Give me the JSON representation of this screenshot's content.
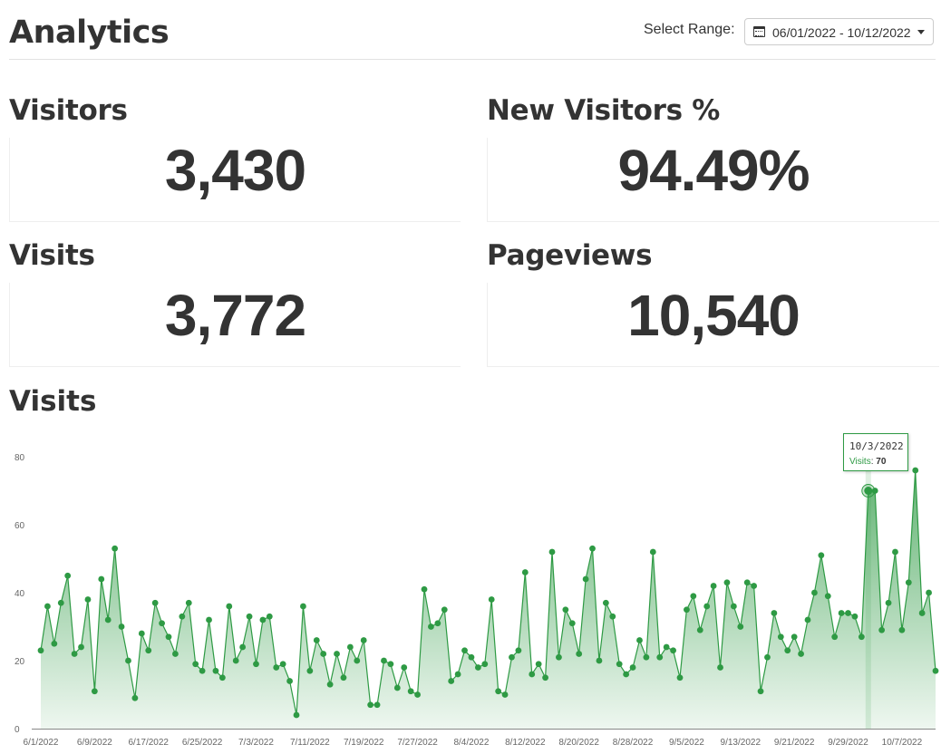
{
  "header": {
    "title": "Analytics",
    "range_label": "Select Range:",
    "range_value": "06/01/2022 - 10/12/2022"
  },
  "stats": {
    "visitors": {
      "label": "Visitors",
      "value": "3,430"
    },
    "new_visitors": {
      "label": "New Visitors %",
      "value": "94.49%"
    },
    "visits": {
      "label": "Visits",
      "value": "3,772"
    },
    "pageviews": {
      "label": "Pageviews",
      "value": "10,540"
    }
  },
  "chart_section": {
    "title": "Visits"
  },
  "tooltip": {
    "date": "10/3/2022",
    "label": "Visits",
    "value": "70"
  },
  "colors": {
    "series": "#2e9a44",
    "fill": "#56b26a",
    "text": "#333333"
  },
  "icons": {
    "calendar": "calendar-icon",
    "caret": "caret-down-icon"
  },
  "chart_data": {
    "type": "area",
    "x_start": "6/1/2022",
    "x_tick_labels": [
      "6/1/2022",
      "6/9/2022",
      "6/17/2022",
      "6/25/2022",
      "7/3/2022",
      "7/11/2022",
      "7/19/2022",
      "7/27/2022",
      "8/4/2022",
      "8/12/2022",
      "8/20/2022",
      "8/28/2022",
      "9/5/2022",
      "9/13/2022",
      "9/21/2022",
      "9/29/2022",
      "10/7/2022"
    ],
    "y_ticks": [
      0,
      20,
      40,
      60,
      80
    ],
    "ylim": [
      0,
      80
    ],
    "series": [
      {
        "name": "Visits",
        "values": [
          23,
          36,
          25,
          37,
          45,
          22,
          24,
          38,
          11,
          44,
          32,
          53,
          30,
          20,
          9,
          28,
          23,
          37,
          31,
          27,
          22,
          33,
          37,
          19,
          17,
          32,
          17,
          15,
          36,
          20,
          24,
          33,
          19,
          32,
          33,
          18,
          19,
          14,
          4,
          36,
          17,
          26,
          22,
          13,
          22,
          15,
          24,
          20,
          26,
          7,
          7,
          20,
          19,
          12,
          18,
          11,
          10,
          41,
          30,
          31,
          35,
          14,
          16,
          23,
          21,
          18,
          19,
          38,
          11,
          10,
          21,
          23,
          46,
          16,
          19,
          15,
          52,
          21,
          35,
          31,
          22,
          44,
          53,
          20,
          37,
          33,
          19,
          16,
          18,
          26,
          21,
          52,
          21,
          24,
          23,
          15,
          35,
          39,
          29,
          36,
          42,
          18,
          43,
          36,
          30,
          43,
          42,
          11,
          21,
          34,
          27,
          23,
          27,
          22,
          32,
          40,
          51,
          39,
          27,
          34,
          34,
          33,
          27,
          70,
          70,
          29,
          37,
          52,
          29,
          43,
          76,
          34,
          40,
          17
        ]
      }
    ],
    "highlight": {
      "x": "10/3/2022",
      "y": 70
    }
  }
}
